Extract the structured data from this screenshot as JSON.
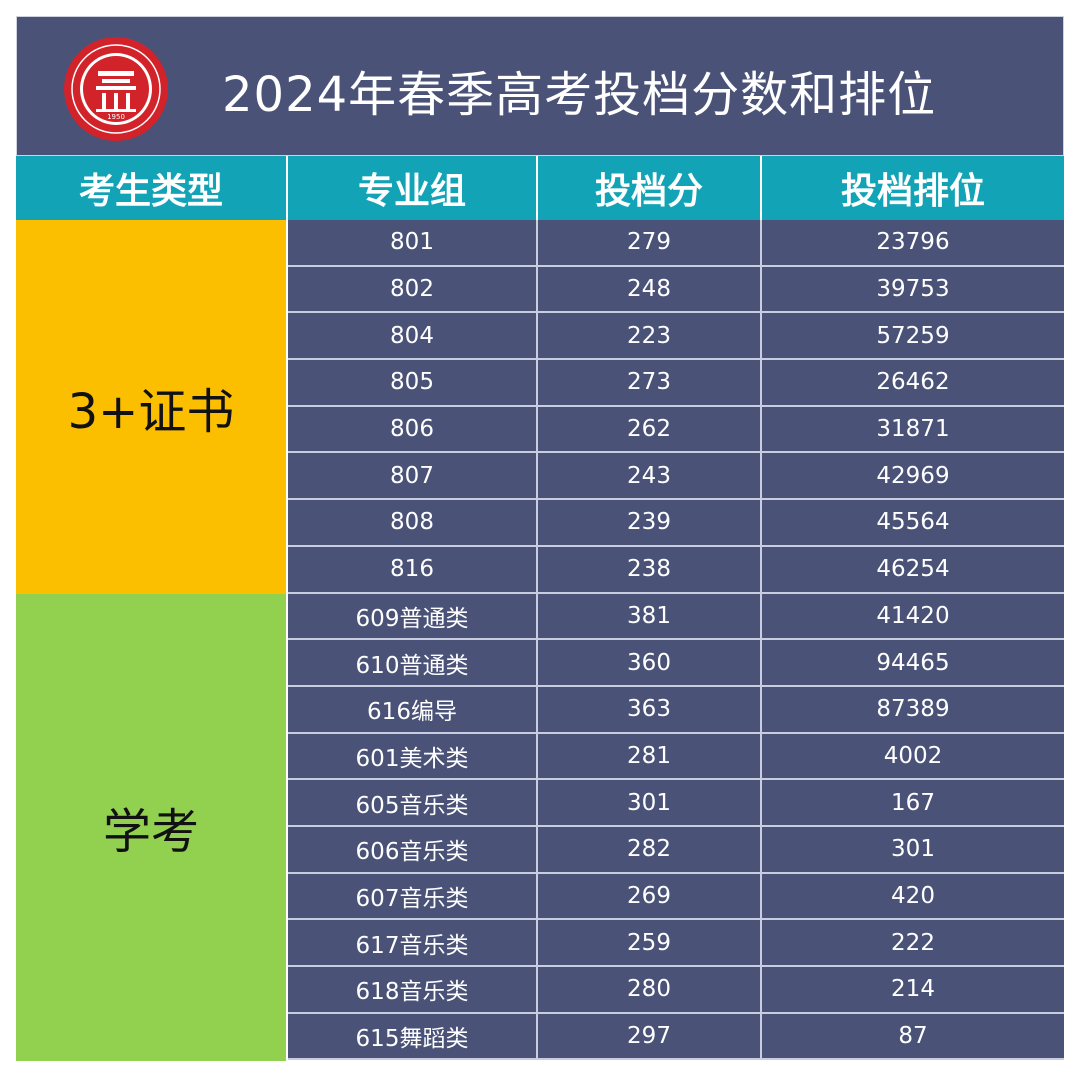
{
  "title": "2024年春季高考投档分数和排位",
  "columns": [
    "考生类型",
    "专业组",
    "投档分",
    "投档排位"
  ],
  "colors": {
    "banner": "#4a5278",
    "header": "#13a3b7",
    "group1": "#fcbf00",
    "group2": "#92d050",
    "logo_red": "#d2232a"
  },
  "logo": {
    "name": "school-seal",
    "year": "1950"
  },
  "groups": [
    {
      "label": "3+证书",
      "rows": [
        {
          "group": "801",
          "score": "279",
          "rank": "23796"
        },
        {
          "group": "802",
          "score": "248",
          "rank": "39753"
        },
        {
          "group": "804",
          "score": "223",
          "rank": "57259"
        },
        {
          "group": "805",
          "score": "273",
          "rank": "26462"
        },
        {
          "group": "806",
          "score": "262",
          "rank": "31871"
        },
        {
          "group": "807",
          "score": "243",
          "rank": "42969"
        },
        {
          "group": "808",
          "score": "239",
          "rank": "45564"
        },
        {
          "group": "816",
          "score": "238",
          "rank": "46254"
        }
      ]
    },
    {
      "label": "学考",
      "rows": [
        {
          "group": "609普通类",
          "score": "381",
          "rank": "41420"
        },
        {
          "group": "610普通类",
          "score": "360",
          "rank": "94465"
        },
        {
          "group": "616编导",
          "score": "363",
          "rank": "87389"
        },
        {
          "group": "601美术类",
          "score": "281",
          "rank": "4002"
        },
        {
          "group": "605音乐类",
          "score": "301",
          "rank": "167"
        },
        {
          "group": "606音乐类",
          "score": "282",
          "rank": "301"
        },
        {
          "group": "607音乐类",
          "score": "269",
          "rank": "420"
        },
        {
          "group": "617音乐类",
          "score": "259",
          "rank": "222"
        },
        {
          "group": "618音乐类",
          "score": "280",
          "rank": "214"
        },
        {
          "group": "615舞蹈类",
          "score": "297",
          "rank": "87"
        }
      ]
    }
  ]
}
